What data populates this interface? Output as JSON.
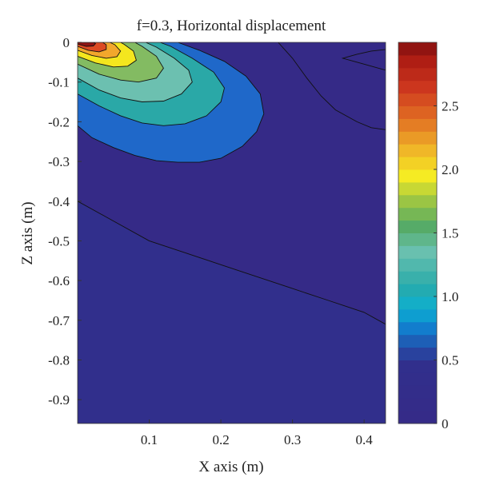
{
  "chart_data": {
    "type": "heatmap",
    "title": "f=0.3, Horizontal displacement",
    "xlabel": "X axis (m)",
    "ylabel": "Z axis (m)",
    "xlim": [
      0,
      0.43
    ],
    "ylim": [
      -0.96,
      0
    ],
    "x_ticks": [
      "0.1",
      "0.2",
      "0.3",
      "0.4"
    ],
    "x_tick_values": [
      0.1,
      0.2,
      0.3,
      0.4
    ],
    "y_ticks": [
      "0",
      "-0.1",
      "-0.2",
      "-0.3",
      "-0.4",
      "-0.5",
      "-0.6",
      "-0.7",
      "-0.8",
      "-0.9"
    ],
    "y_tick_values": [
      0,
      -0.1,
      -0.2,
      -0.3,
      -0.4,
      -0.5,
      -0.6,
      -0.7,
      -0.8,
      -0.9
    ],
    "colorbar": {
      "range": [
        0,
        3.0
      ],
      "ticks": [
        "0",
        "0.5",
        "1.0",
        "1.5",
        "2.0",
        "2.5"
      ],
      "tick_values": [
        0,
        0.5,
        1.0,
        1.5,
        2.0,
        2.5
      ],
      "levels": 30
    },
    "contour_fills": [
      {
        "value": 0.05,
        "color": "#352a87",
        "points": [
          [
            0,
            -0.96
          ],
          [
            0.43,
            -0.96
          ],
          [
            0.43,
            0
          ],
          [
            0,
            0
          ]
        ]
      },
      {
        "value": 0.3,
        "color": "#312f8c",
        "points": [
          [
            0,
            -0.4
          ],
          [
            0.05,
            -0.45
          ],
          [
            0.1,
            -0.5
          ],
          [
            0.15,
            -0.53
          ],
          [
            0.2,
            -0.56
          ],
          [
            0.25,
            -0.59
          ],
          [
            0.3,
            -0.62
          ],
          [
            0.35,
            -0.65
          ],
          [
            0.4,
            -0.68
          ],
          [
            0.43,
            -0.71
          ],
          [
            0.43,
            -0.96
          ],
          [
            0,
            -0.96
          ]
        ]
      },
      {
        "value": 0.55,
        "color": "#1f68c9",
        "points": [
          [
            0,
            -0.21
          ],
          [
            0.02,
            -0.24
          ],
          [
            0.05,
            -0.265
          ],
          [
            0.08,
            -0.285
          ],
          [
            0.11,
            -0.298
          ],
          [
            0.14,
            -0.302
          ],
          [
            0.17,
            -0.302
          ],
          [
            0.2,
            -0.292
          ],
          [
            0.23,
            -0.262
          ],
          [
            0.25,
            -0.225
          ],
          [
            0.26,
            -0.18
          ],
          [
            0.255,
            -0.13
          ],
          [
            0.235,
            -0.085
          ],
          [
            0.205,
            -0.048
          ],
          [
            0.17,
            -0.02
          ],
          [
            0.14,
            0
          ],
          [
            0,
            0
          ]
        ]
      },
      {
        "value": 0.95,
        "color": "#2aa8a7",
        "points": [
          [
            0,
            -0.13
          ],
          [
            0.03,
            -0.16
          ],
          [
            0.06,
            -0.185
          ],
          [
            0.09,
            -0.203
          ],
          [
            0.12,
            -0.21
          ],
          [
            0.15,
            -0.205
          ],
          [
            0.18,
            -0.185
          ],
          [
            0.2,
            -0.15
          ],
          [
            0.205,
            -0.115
          ],
          [
            0.19,
            -0.075
          ],
          [
            0.16,
            -0.04
          ],
          [
            0.13,
            -0.01
          ],
          [
            0.115,
            0
          ],
          [
            0,
            0
          ]
        ]
      },
      {
        "value": 1.2,
        "color": "#6cc0b0",
        "points": [
          [
            0,
            -0.09
          ],
          [
            0.03,
            -0.12
          ],
          [
            0.06,
            -0.14
          ],
          [
            0.09,
            -0.15
          ],
          [
            0.12,
            -0.148
          ],
          [
            0.145,
            -0.13
          ],
          [
            0.16,
            -0.1
          ],
          [
            0.155,
            -0.07
          ],
          [
            0.135,
            -0.04
          ],
          [
            0.11,
            -0.012
          ],
          [
            0.095,
            0
          ],
          [
            0,
            0
          ]
        ]
      },
      {
        "value": 1.55,
        "color": "#83bb62",
        "points": [
          [
            0,
            -0.055
          ],
          [
            0.03,
            -0.08
          ],
          [
            0.06,
            -0.095
          ],
          [
            0.085,
            -0.1
          ],
          [
            0.11,
            -0.09
          ],
          [
            0.12,
            -0.065
          ],
          [
            0.11,
            -0.035
          ],
          [
            0.09,
            -0.01
          ],
          [
            0.08,
            0
          ],
          [
            0,
            0
          ]
        ]
      },
      {
        "value": 1.9,
        "color": "#f4e61e",
        "points": [
          [
            0,
            -0.035
          ],
          [
            0.025,
            -0.052
          ],
          [
            0.05,
            -0.062
          ],
          [
            0.07,
            -0.06
          ],
          [
            0.082,
            -0.045
          ],
          [
            0.078,
            -0.022
          ],
          [
            0.065,
            -0.005
          ],
          [
            0.06,
            0
          ],
          [
            0,
            0
          ]
        ]
      },
      {
        "value": 2.2,
        "color": "#f2a72c",
        "points": [
          [
            0,
            -0.02
          ],
          [
            0.02,
            -0.033
          ],
          [
            0.04,
            -0.04
          ],
          [
            0.055,
            -0.036
          ],
          [
            0.06,
            -0.022
          ],
          [
            0.052,
            -0.006
          ],
          [
            0.045,
            0
          ],
          [
            0,
            0
          ]
        ]
      },
      {
        "value": 2.6,
        "color": "#dc4a23",
        "points": [
          [
            0,
            -0.01
          ],
          [
            0.015,
            -0.02
          ],
          [
            0.03,
            -0.024
          ],
          [
            0.04,
            -0.018
          ],
          [
            0.04,
            -0.006
          ],
          [
            0.035,
            0
          ],
          [
            0,
            0
          ]
        ]
      },
      {
        "value": 2.9,
        "color": "#8e1414",
        "points": [
          [
            0,
            -0.004
          ],
          [
            0.012,
            -0.01
          ],
          [
            0.022,
            -0.009
          ],
          [
            0.025,
            -0.003
          ],
          [
            0.022,
            0
          ],
          [
            0,
            0
          ]
        ]
      }
    ],
    "contour_lines": [
      {
        "value": 0.2,
        "points": [
          [
            0.28,
            0
          ],
          [
            0.3,
            -0.04
          ],
          [
            0.32,
            -0.09
          ],
          [
            0.34,
            -0.135
          ],
          [
            0.36,
            -0.17
          ],
          [
            0.39,
            -0.2
          ],
          [
            0.41,
            -0.215
          ],
          [
            0.43,
            -0.22
          ]
        ]
      },
      {
        "value": 0.2,
        "closed": true,
        "points": [
          [
            0.37,
            -0.04
          ],
          [
            0.39,
            -0.03
          ],
          [
            0.41,
            -0.022
          ],
          [
            0.43,
            -0.018
          ],
          [
            0.43,
            -0.07
          ],
          [
            0.41,
            -0.06
          ],
          [
            0.39,
            -0.05
          ]
        ]
      }
    ]
  }
}
